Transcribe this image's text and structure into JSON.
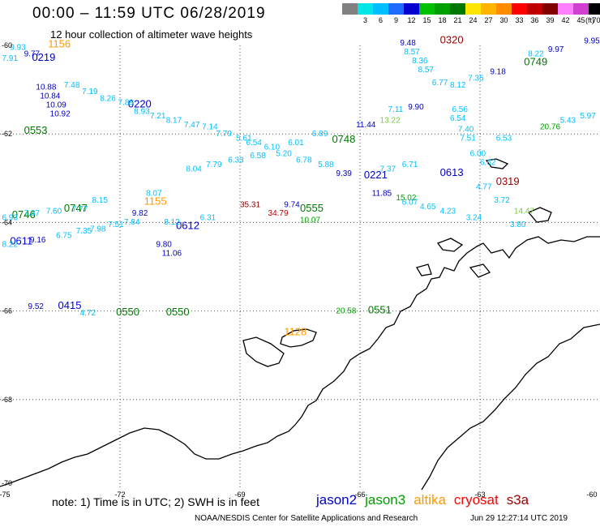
{
  "header": {
    "title": "00:00 – 11:59 UTC 06/28/2019",
    "subtitle": "12 hour collection of altimeter wave heights",
    "unit_label": "(ft)"
  },
  "scale": [
    {
      "label": "",
      "color": "#808080"
    },
    {
      "label": "3",
      "color": "#00e5e5"
    },
    {
      "label": "6",
      "color": "#00bfff"
    },
    {
      "label": "9",
      "color": "#1e6cff"
    },
    {
      "label": "12",
      "color": "#0000d0"
    },
    {
      "label": "15",
      "color": "#00c000"
    },
    {
      "label": "18",
      "color": "#00a000"
    },
    {
      "label": "21",
      "color": "#007800"
    },
    {
      "label": "24",
      "color": "#ffe600"
    },
    {
      "label": "27",
      "color": "#ffb400"
    },
    {
      "label": "30",
      "color": "#ff8c00"
    },
    {
      "label": "33",
      "color": "#ff0000"
    },
    {
      "label": "36",
      "color": "#c00000"
    },
    {
      "label": "39",
      "color": "#800000"
    },
    {
      "label": "42",
      "color": "#ff80ff"
    },
    {
      "label": "45",
      "color": "#d040d0"
    },
    {
      "label": "70",
      "color": "#000000"
    }
  ],
  "axes": {
    "lon_ticks": [
      "-75",
      "-72",
      "-69",
      "-66",
      "-63",
      "-60"
    ],
    "lat_ticks": [
      "-60",
      "-62",
      "-64",
      "-66",
      "-68",
      "-70"
    ]
  },
  "map_labels": [
    {
      "text": "1156",
      "lon": -73.8,
      "lat": -60.05,
      "color": "#ff9900",
      "size": 13
    },
    {
      "text": "0219",
      "lon": -74.2,
      "lat": -60.35,
      "color": "#0000cc",
      "size": 13
    },
    {
      "text": "0220",
      "lon": -71.8,
      "lat": -61.4,
      "color": "#0000cc",
      "size": 13
    },
    {
      "text": "0748",
      "lon": -66.7,
      "lat": -62.2,
      "color": "#007700",
      "size": 13
    },
    {
      "text": "0221",
      "lon": -65.9,
      "lat": -63.0,
      "color": "#0000cc",
      "size": 13
    },
    {
      "text": "0613",
      "lon": -64.0,
      "lat": -62.95,
      "color": "#0000cc",
      "size": 13
    },
    {
      "text": "0319",
      "lon": -62.6,
      "lat": -63.15,
      "color": "#990000",
      "size": 13
    },
    {
      "text": "0320",
      "lon": -64.0,
      "lat": -59.95,
      "color": "#990000",
      "size": 13
    },
    {
      "text": "0749",
      "lon": -61.9,
      "lat": -60.45,
      "color": "#007700",
      "size": 13
    },
    {
      "text": "0747",
      "lon": -73.4,
      "lat": -63.75,
      "color": "#007700",
      "size": 13
    },
    {
      "text": "0746",
      "lon": -74.7,
      "lat": -63.9,
      "color": "#007700",
      "size": 13
    },
    {
      "text": "1155",
      "lon": -71.4,
      "lat": -63.6,
      "color": "#ff9900",
      "size": 13
    },
    {
      "text": "0612",
      "lon": -70.6,
      "lat": -64.15,
      "color": "#0000cc",
      "size": 13
    },
    {
      "text": "0611",
      "lon": -74.75,
      "lat": -64.5,
      "color": "#0000cc",
      "size": 13
    },
    {
      "text": "0415",
      "lon": -73.55,
      "lat": -65.95,
      "color": "#0000cc",
      "size": 13
    },
    {
      "text": "0550",
      "lon": -72.1,
      "lat": -66.1,
      "color": "#007700",
      "size": 13
    },
    {
      "text": "0550",
      "lon": -70.85,
      "lat": -66.1,
      "color": "#007700",
      "size": 13
    },
    {
      "text": "0551",
      "lon": -65.8,
      "lat": -66.05,
      "color": "#007700",
      "size": 13
    },
    {
      "text": "0555",
      "lon": -67.5,
      "lat": -63.75,
      "color": "#007700",
      "size": 13
    },
    {
      "text": "0553",
      "lon": -74.4,
      "lat": -62.0,
      "color": "#007700",
      "size": 13
    },
    {
      "text": "1128",
      "lon": -67.9,
      "lat": -66.55,
      "color": "#ff9900",
      "size": 13
    },
    {
      "text": "9.52",
      "lon": -74.3,
      "lat": -65.95,
      "color": "#0000cc",
      "size": 10
    },
    {
      "text": "4.72",
      "lon": -73.0,
      "lat": -66.1,
      "color": "#00bfff",
      "size": 10
    },
    {
      "text": "20.58",
      "lon": -66.6,
      "lat": -66.05,
      "color": "#00a000",
      "size": 10
    },
    {
      "text": "9.48",
      "lon": -65.0,
      "lat": -60.0,
      "color": "#0000cc",
      "size": 10
    },
    {
      "text": "9.95",
      "lon": -60.4,
      "lat": -59.95,
      "color": "#0000cc",
      "size": 10
    },
    {
      "text": "20.76",
      "lon": -61.5,
      "lat": -61.9,
      "color": "#00a000",
      "size": 10
    },
    {
      "text": "11.44",
      "lon": -66.1,
      "lat": -61.85,
      "color": "#0000cc",
      "size": 10
    },
    {
      "text": "13.22",
      "lon": -65.5,
      "lat": -61.75,
      "color": "#77cc44",
      "size": 10
    },
    {
      "text": "9.90",
      "lon": -64.8,
      "lat": -61.45,
      "color": "#0000cc",
      "size": 10
    },
    {
      "text": "9.39",
      "lon": -66.6,
      "lat": -62.95,
      "color": "#0000cc",
      "size": 10
    },
    {
      "text": "11.85",
      "lon": -65.7,
      "lat": -63.4,
      "color": "#0000cc",
      "size": 10
    },
    {
      "text": "15.02",
      "lon": -65.1,
      "lat": -63.5,
      "color": "#00a000",
      "size": 10
    },
    {
      "text": "14.47",
      "lon": -62.15,
      "lat": -63.8,
      "color": "#77cc44",
      "size": 10
    },
    {
      "text": "35.31",
      "lon": -69.0,
      "lat": -63.65,
      "color": "#800000",
      "size": 10
    },
    {
      "text": "34.79",
      "lon": -68.3,
      "lat": -63.85,
      "color": "#c00000",
      "size": 10
    },
    {
      "text": "9.74",
      "lon": -67.9,
      "lat": -63.65,
      "color": "#0000cc",
      "size": 10
    },
    {
      "text": "10.07",
      "lon": -67.5,
      "lat": -64.0,
      "color": "#00a000",
      "size": 10
    },
    {
      "text": "9.16",
      "lon": -74.25,
      "lat": -64.45,
      "color": "#0000cc",
      "size": 10
    },
    {
      "text": "8.22",
      "lon": -74.95,
      "lat": -64.55,
      "color": "#00bfff",
      "size": 10
    },
    {
      "text": "6.75",
      "lon": -73.6,
      "lat": -64.35,
      "color": "#00bfff",
      "size": 10
    },
    {
      "text": "7.35",
      "lon": -73.1,
      "lat": -64.25,
      "color": "#00bfff",
      "size": 10
    },
    {
      "text": "7.98",
      "lon": -72.75,
      "lat": -64.2,
      "color": "#00bfff",
      "size": 10
    },
    {
      "text": "7.51",
      "lon": -72.3,
      "lat": -64.1,
      "color": "#00bfff",
      "size": 10
    },
    {
      "text": "7.84",
      "lon": -71.9,
      "lat": -64.05,
      "color": "#00bfff",
      "size": 10
    },
    {
      "text": "6.31",
      "lon": -70.0,
      "lat": -63.95,
      "color": "#00bfff",
      "size": 10
    },
    {
      "text": "8.12",
      "lon": -70.9,
      "lat": -64.05,
      "color": "#00bfff",
      "size": 10
    },
    {
      "text": "9.80",
      "lon": -71.1,
      "lat": -64.55,
      "color": "#0000cc",
      "size": 10
    },
    {
      "text": "11.06",
      "lon": -70.95,
      "lat": -64.75,
      "color": "#0000cc",
      "size": 10
    },
    {
      "text": "9.82",
      "lon": -71.7,
      "lat": -63.85,
      "color": "#0000cc",
      "size": 10
    },
    {
      "text": "8.07",
      "lon": -71.35,
      "lat": -63.4,
      "color": "#00bfff",
      "size": 10
    },
    {
      "text": "8.15",
      "lon": -72.7,
      "lat": -63.55,
      "color": "#00bfff",
      "size": 10
    },
    {
      "text": "7.77",
      "lon": -73.2,
      "lat": -63.75,
      "color": "#00bfff",
      "size": 10
    },
    {
      "text": "7.60",
      "lon": -73.85,
      "lat": -63.8,
      "color": "#00bfff",
      "size": 10
    },
    {
      "text": "7.87",
      "lon": -74.4,
      "lat": -63.85,
      "color": "#00bfff",
      "size": 10
    },
    {
      "text": "6.93",
      "lon": -74.95,
      "lat": -63.95,
      "color": "#00bfff",
      "size": 10
    },
    {
      "text": "8.26",
      "lon": -72.5,
      "lat": -61.25,
      "color": "#00bfff",
      "size": 10
    },
    {
      "text": "7.19",
      "lon": -72.95,
      "lat": -61.1,
      "color": "#00bfff",
      "size": 10
    },
    {
      "text": "7.89",
      "lon": -72.05,
      "lat": -61.35,
      "color": "#00bfff",
      "size": 10
    },
    {
      "text": "8.93",
      "lon": -71.65,
      "lat": -61.55,
      "color": "#00bfff",
      "size": 10
    },
    {
      "text": "7.21",
      "lon": -71.25,
      "lat": -61.65,
      "color": "#00bfff",
      "size": 10
    },
    {
      "text": "8.17",
      "lon": -70.85,
      "lat": -61.75,
      "color": "#00bfff",
      "size": 10
    },
    {
      "text": "7.47",
      "lon": -70.4,
      "lat": -61.85,
      "color": "#00bfff",
      "size": 10
    },
    {
      "text": "7.14",
      "lon": -69.95,
      "lat": -61.9,
      "color": "#00bfff",
      "size": 10
    },
    {
      "text": "7.79",
      "lon": -69.6,
      "lat": -62.05,
      "color": "#00bfff",
      "size": 10
    },
    {
      "text": "5.61",
      "lon": -69.1,
      "lat": -62.15,
      "color": "#00bfff",
      "size": 10
    },
    {
      "text": "6.54",
      "lon": -68.85,
      "lat": -62.25,
      "color": "#00bfff",
      "size": 10
    },
    {
      "text": "6.10",
      "lon": -68.4,
      "lat": -62.35,
      "color": "#00bfff",
      "size": 10
    },
    {
      "text": "6.01",
      "lon": -67.8,
      "lat": -62.25,
      "color": "#00bfff",
      "size": 10
    },
    {
      "text": "5.20",
      "lon": -68.1,
      "lat": -62.5,
      "color": "#00bfff",
      "size": 10
    },
    {
      "text": "6.58",
      "lon": -68.75,
      "lat": -62.55,
      "color": "#00bfff",
      "size": 10
    },
    {
      "text": "6.33",
      "lon": -69.3,
      "lat": -62.65,
      "color": "#00bfff",
      "size": 10
    },
    {
      "text": "7.79",
      "lon": -69.85,
      "lat": -62.75,
      "color": "#00bfff",
      "size": 10
    },
    {
      "text": "8.04",
      "lon": -70.35,
      "lat": -62.85,
      "color": "#00bfff",
      "size": 10
    },
    {
      "text": "6.78",
      "lon": -67.6,
      "lat": -62.65,
      "color": "#00bfff",
      "size": 10
    },
    {
      "text": "5.88",
      "lon": -67.05,
      "lat": -62.75,
      "color": "#00bfff",
      "size": 10
    },
    {
      "text": "6.89",
      "lon": -67.2,
      "lat": -62.05,
      "color": "#00bfff",
      "size": 10
    },
    {
      "text": "7.37",
      "lon": -65.5,
      "lat": -62.85,
      "color": "#00bfff",
      "size": 10
    },
    {
      "text": "6.71",
      "lon": -64.95,
      "lat": -62.75,
      "color": "#00bfff",
      "size": 10
    },
    {
      "text": "6.07",
      "lon": -64.95,
      "lat": -63.6,
      "color": "#00bfff",
      "size": 10
    },
    {
      "text": "4.65",
      "lon": -64.5,
      "lat": -63.7,
      "color": "#00bfff",
      "size": 10
    },
    {
      "text": "4.23",
      "lon": -64.0,
      "lat": -63.8,
      "color": "#00bfff",
      "size": 10
    },
    {
      "text": "3.24",
      "lon": -63.35,
      "lat": -63.95,
      "color": "#00bfff",
      "size": 10
    },
    {
      "text": "3.80",
      "lon": -62.25,
      "lat": -64.1,
      "color": "#00bfff",
      "size": 10
    },
    {
      "text": "3.72",
      "lon": -62.65,
      "lat": -63.55,
      "color": "#00bfff",
      "size": 10
    },
    {
      "text": "4.77",
      "lon": -63.1,
      "lat": -63.25,
      "color": "#00bfff",
      "size": 10
    },
    {
      "text": "6.62",
      "lon": -63.0,
      "lat": -62.7,
      "color": "#00bfff",
      "size": 10
    },
    {
      "text": "6.00",
      "lon": -63.25,
      "lat": -62.5,
      "color": "#00bfff",
      "size": 10
    },
    {
      "text": "6.53",
      "lon": -62.6,
      "lat": -62.15,
      "color": "#00bfff",
      "size": 10
    },
    {
      "text": "5.97",
      "lon": -60.5,
      "lat": -61.65,
      "color": "#00bfff",
      "size": 10
    },
    {
      "text": "5.43",
      "lon": -61.0,
      "lat": -61.75,
      "color": "#00bfff",
      "size": 10
    },
    {
      "text": "6.54",
      "lon": -63.75,
      "lat": -61.7,
      "color": "#00bfff",
      "size": 10
    },
    {
      "text": "7.40",
      "lon": -63.55,
      "lat": -61.95,
      "color": "#00bfff",
      "size": 10
    },
    {
      "text": "7.51",
      "lon": -63.5,
      "lat": -62.15,
      "color": "#00bfff",
      "size": 10
    },
    {
      "text": "6.56",
      "lon": -63.7,
      "lat": -61.5,
      "color": "#00bfff",
      "size": 10
    },
    {
      "text": "6.77",
      "lon": -64.2,
      "lat": -60.9,
      "color": "#00bfff",
      "size": 10
    },
    {
      "text": "8.12",
      "lon": -63.75,
      "lat": -60.95,
      "color": "#00bfff",
      "size": 10
    },
    {
      "text": "7.35",
      "lon": -63.3,
      "lat": -60.8,
      "color": "#00bfff",
      "size": 10
    },
    {
      "text": "9.18",
      "lon": -62.75,
      "lat": -60.65,
      "color": "#0000cc",
      "size": 10
    },
    {
      "text": "9.97",
      "lon": -61.3,
      "lat": -60.15,
      "color": "#0000cc",
      "size": 10
    },
    {
      "text": "8.22",
      "lon": -61.8,
      "lat": -60.25,
      "color": "#00bfff",
      "size": 10
    },
    {
      "text": "8.57",
      "lon": -64.9,
      "lat": -60.2,
      "color": "#00bfff",
      "size": 10
    },
    {
      "text": "8.36",
      "lon": -64.7,
      "lat": -60.4,
      "color": "#00bfff",
      "size": 10
    },
    {
      "text": "8.57",
      "lon": -64.55,
      "lat": -60.6,
      "color": "#00bfff",
      "size": 10
    },
    {
      "text": "7.11",
      "lon": -65.3,
      "lat": -61.5,
      "color": "#00bfff",
      "size": 10
    },
    {
      "text": "9.93",
      "lon": -74.75,
      "lat": -60.1,
      "color": "#00bfff",
      "size": 10
    },
    {
      "text": "9.77",
      "lon": -74.4,
      "lat": -60.25,
      "color": "#0000cc",
      "size": 10
    },
    {
      "text": "7.91",
      "lon": -74.95,
      "lat": -60.35,
      "color": "#00bfff",
      "size": 10
    },
    {
      "text": "10.84",
      "lon": -74.0,
      "lat": -61.2,
      "color": "#0000cc",
      "size": 10
    },
    {
      "text": "10.88",
      "lon": -74.1,
      "lat": -61.0,
      "color": "#0000cc",
      "size": 10
    },
    {
      "text": "10.09",
      "lon": -73.85,
      "lat": -61.4,
      "color": "#0000cc",
      "size": 10
    },
    {
      "text": "10.92",
      "lon": -73.75,
      "lat": -61.6,
      "color": "#0000cc",
      "size": 10
    },
    {
      "text": "7.48",
      "lon": -73.4,
      "lat": -60.95,
      "color": "#00bfff",
      "size": 10
    }
  ],
  "footer": {
    "note": "note: 1) Time is in UTC; 2) SWH is in feet",
    "legend": [
      {
        "label": "jason2",
        "color": "#0000cc"
      },
      {
        "label": "jason3",
        "color": "#00a000"
      },
      {
        "label": "altika",
        "color": "#ff9900"
      },
      {
        "label": "cryosat",
        "color": "#ff0000"
      },
      {
        "label": "s3a",
        "color": "#990000"
      }
    ],
    "credit": "NOAA/NESDIS Center for Satellite Applications and Research",
    "timestamp": "Jun 29 12:27:14 UTC 2019"
  }
}
